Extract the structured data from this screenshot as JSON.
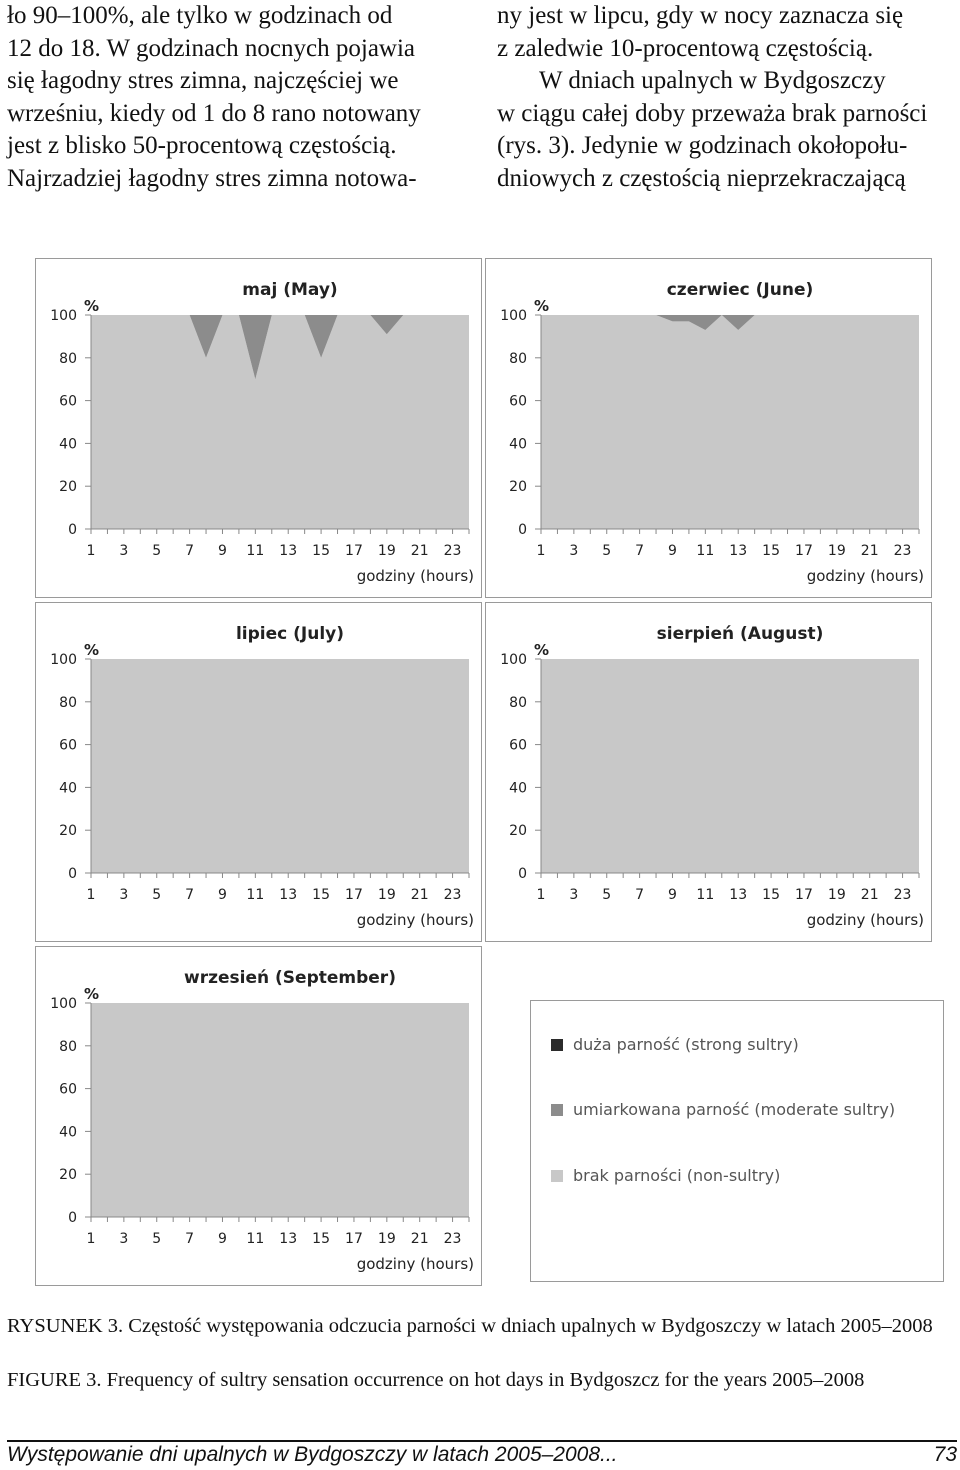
{
  "text": {
    "left_lines": [
      "ło 90–100%, ale tylko w godzinach od",
      "12 do 18. W godzinach nocnych pojawia",
      "się łagodny stres zimna, najczęściej we",
      "wrześniu, kiedy od 1 do 8 rano notowany",
      "jest z blisko 50-procentową częstością.",
      "Najrzadziej łagodny stres zimna notowa-"
    ],
    "right_lines": [
      "ny jest w lipcu, gdy w nocy zaznacza się",
      "z zaledwie 10-procentową częstością.",
      "W dniach upalnych w Bydgoszczy",
      "w ciągu całej doby przeważa brak parności",
      "(rys. 3). Jedynie w godzinach okołopołu-",
      "dniowych z częstością nieprzekraczającą"
    ]
  },
  "colors": {
    "strong": "#2b2b2b",
    "moderate": "#8c8c8c",
    "none": "#c8c8c8",
    "axis_text": "#222222"
  },
  "axis_labels": {
    "percent": "%",
    "x_title": "godziny (hours)",
    "y_ticks": [
      "0",
      "20",
      "40",
      "60",
      "80",
      "100"
    ],
    "x_ticks": [
      "1",
      "3",
      "5",
      "7",
      "9",
      "11",
      "13",
      "15",
      "17",
      "19",
      "21",
      "23"
    ]
  },
  "chart_data": [
    {
      "type": "area",
      "title": "maj (May)",
      "xlabel": "godziny (hours)",
      "ylabel": "%",
      "ylim": [
        0,
        100
      ],
      "x": [
        1,
        2,
        3,
        4,
        5,
        6,
        7,
        8,
        9,
        10,
        11,
        12,
        13,
        14,
        15,
        16,
        17,
        18,
        19,
        20,
        21,
        22,
        23,
        24
      ],
      "series": [
        {
          "name": "duża parność (strong sultry)",
          "values": [
            0,
            0,
            0,
            0,
            0,
            0,
            0,
            0,
            0,
            0,
            0,
            0,
            0,
            0,
            0,
            0,
            0,
            0,
            0,
            0,
            0,
            0,
            0,
            0
          ]
        },
        {
          "name": "umiarkowana parność (moderate sultry)",
          "values": [
            0,
            0,
            0,
            0,
            0,
            0,
            0,
            20,
            0,
            0,
            30,
            0,
            0,
            0,
            20,
            0,
            0,
            0,
            9,
            0,
            0,
            0,
            0,
            0
          ]
        },
        {
          "name": "brak parności (non-sultry)",
          "values": [
            100,
            100,
            100,
            100,
            100,
            100,
            100,
            80,
            100,
            100,
            70,
            100,
            100,
            100,
            80,
            100,
            100,
            100,
            91,
            100,
            100,
            100,
            100,
            100
          ]
        }
      ]
    },
    {
      "type": "area",
      "title": "czerwiec (June)",
      "xlabel": "godziny (hours)",
      "ylabel": "%",
      "ylim": [
        0,
        100
      ],
      "x": [
        1,
        2,
        3,
        4,
        5,
        6,
        7,
        8,
        9,
        10,
        11,
        12,
        13,
        14,
        15,
        16,
        17,
        18,
        19,
        20,
        21,
        22,
        23,
        24
      ],
      "series": [
        {
          "name": "duża parność (strong sultry)",
          "values": [
            0,
            0,
            0,
            0,
            0,
            0,
            0,
            0,
            0,
            0,
            0,
            0,
            0,
            0,
            0,
            0,
            0,
            0,
            0,
            0,
            0,
            0,
            0,
            0
          ]
        },
        {
          "name": "umiarkowana parność (moderate sultry)",
          "values": [
            0,
            0,
            0,
            0,
            0,
            0,
            0,
            0,
            3,
            3,
            7,
            0,
            7,
            0,
            0,
            0,
            0,
            0,
            0,
            0,
            0,
            0,
            0,
            0
          ]
        },
        {
          "name": "brak parności (non-sultry)",
          "values": [
            100,
            100,
            100,
            100,
            100,
            100,
            100,
            100,
            97,
            97,
            93,
            100,
            93,
            100,
            100,
            100,
            100,
            100,
            100,
            100,
            100,
            100,
            100,
            100
          ]
        }
      ]
    },
    {
      "type": "area",
      "title": "lipiec (July)",
      "xlabel": "godziny (hours)",
      "ylabel": "%",
      "ylim": [
        0,
        100
      ],
      "x": [
        1,
        2,
        3,
        4,
        5,
        6,
        7,
        8,
        9,
        10,
        11,
        12,
        13,
        14,
        15,
        16,
        17,
        18,
        19,
        20,
        21,
        22,
        23,
        24
      ],
      "series": [
        {
          "name": "duża parność (strong sultry)",
          "values": [
            0,
            0,
            0,
            0,
            0,
            0,
            0,
            0,
            0,
            0,
            0,
            0,
            0,
            0,
            0,
            0,
            0,
            0,
            0,
            0,
            0,
            0,
            0,
            0
          ]
        },
        {
          "name": "umiarkowana parność (moderate sultry)",
          "values": [
            0,
            0,
            0,
            0,
            0,
            0,
            0,
            0,
            0,
            0,
            0,
            0,
            0,
            0,
            0,
            0,
            0,
            0,
            0,
            0,
            0,
            0,
            0,
            0
          ]
        },
        {
          "name": "brak parności (non-sultry)",
          "values": [
            100,
            100,
            100,
            100,
            100,
            100,
            100,
            100,
            100,
            100,
            100,
            100,
            100,
            100,
            100,
            100,
            100,
            100,
            100,
            100,
            100,
            100,
            100,
            100
          ]
        }
      ]
    },
    {
      "type": "area",
      "title": "sierpień (August)",
      "xlabel": "godziny (hours)",
      "ylabel": "%",
      "ylim": [
        0,
        100
      ],
      "x": [
        1,
        2,
        3,
        4,
        5,
        6,
        7,
        8,
        9,
        10,
        11,
        12,
        13,
        14,
        15,
        16,
        17,
        18,
        19,
        20,
        21,
        22,
        23,
        24
      ],
      "series": [
        {
          "name": "duża parność (strong sultry)",
          "values": [
            0,
            0,
            0,
            0,
            0,
            0,
            0,
            0,
            0,
            0,
            0,
            0,
            0,
            0,
            0,
            0,
            0,
            0,
            0,
            0,
            0,
            0,
            0,
            0
          ]
        },
        {
          "name": "umiarkowana parność (moderate sultry)",
          "values": [
            0,
            0,
            0,
            0,
            0,
            0,
            0,
            0,
            0,
            0,
            0,
            0,
            0,
            0,
            0,
            0,
            0,
            0,
            0,
            0,
            0,
            0,
            0,
            0
          ]
        },
        {
          "name": "brak parności (non-sultry)",
          "values": [
            100,
            100,
            100,
            100,
            100,
            100,
            100,
            100,
            100,
            100,
            100,
            100,
            100,
            100,
            100,
            100,
            100,
            100,
            100,
            100,
            100,
            100,
            100,
            100
          ]
        }
      ]
    },
    {
      "type": "area",
      "title": "wrzesień (September)",
      "xlabel": "godziny (hours)",
      "ylabel": "%",
      "ylim": [
        0,
        100
      ],
      "x": [
        1,
        2,
        3,
        4,
        5,
        6,
        7,
        8,
        9,
        10,
        11,
        12,
        13,
        14,
        15,
        16,
        17,
        18,
        19,
        20,
        21,
        22,
        23,
        24
      ],
      "series": [
        {
          "name": "duża parność (strong sultry)",
          "values": [
            0,
            0,
            0,
            0,
            0,
            0,
            0,
            0,
            0,
            0,
            0,
            0,
            0,
            0,
            0,
            0,
            0,
            0,
            0,
            0,
            0,
            0,
            0,
            0
          ]
        },
        {
          "name": "umiarkowana parność (moderate sultry)",
          "values": [
            0,
            0,
            0,
            0,
            0,
            0,
            0,
            0,
            0,
            0,
            0,
            0,
            0,
            0,
            0,
            0,
            0,
            0,
            0,
            0,
            0,
            0,
            0,
            0
          ]
        },
        {
          "name": "brak parności (non-sultry)",
          "values": [
            100,
            100,
            100,
            100,
            100,
            100,
            100,
            100,
            100,
            100,
            100,
            100,
            100,
            100,
            100,
            100,
            100,
            100,
            100,
            100,
            100,
            100,
            100,
            100
          ]
        }
      ]
    }
  ],
  "legend": [
    {
      "label": "duża parność (strong sultry)",
      "color": "#2b2b2b"
    },
    {
      "label": "umiarkowana parność (moderate sultry)",
      "color": "#8c8c8c"
    },
    {
      "label": "brak parności (non-sultry)",
      "color": "#c8c8c8"
    }
  ],
  "caption": {
    "pl": "RYSUNEK 3. Częstość występowania odczucia parności w dniach upalnych w Bydgoszczy w latach 2005–2008",
    "en": "FIGURE 3. Frequency of sultry sensation occurrence on hot days in Bydgoszcz for the years 2005–2008"
  },
  "footer": {
    "title": "Występowanie dni upalnych w Bydgoszczy w latach 2005–2008...",
    "page": "73"
  }
}
